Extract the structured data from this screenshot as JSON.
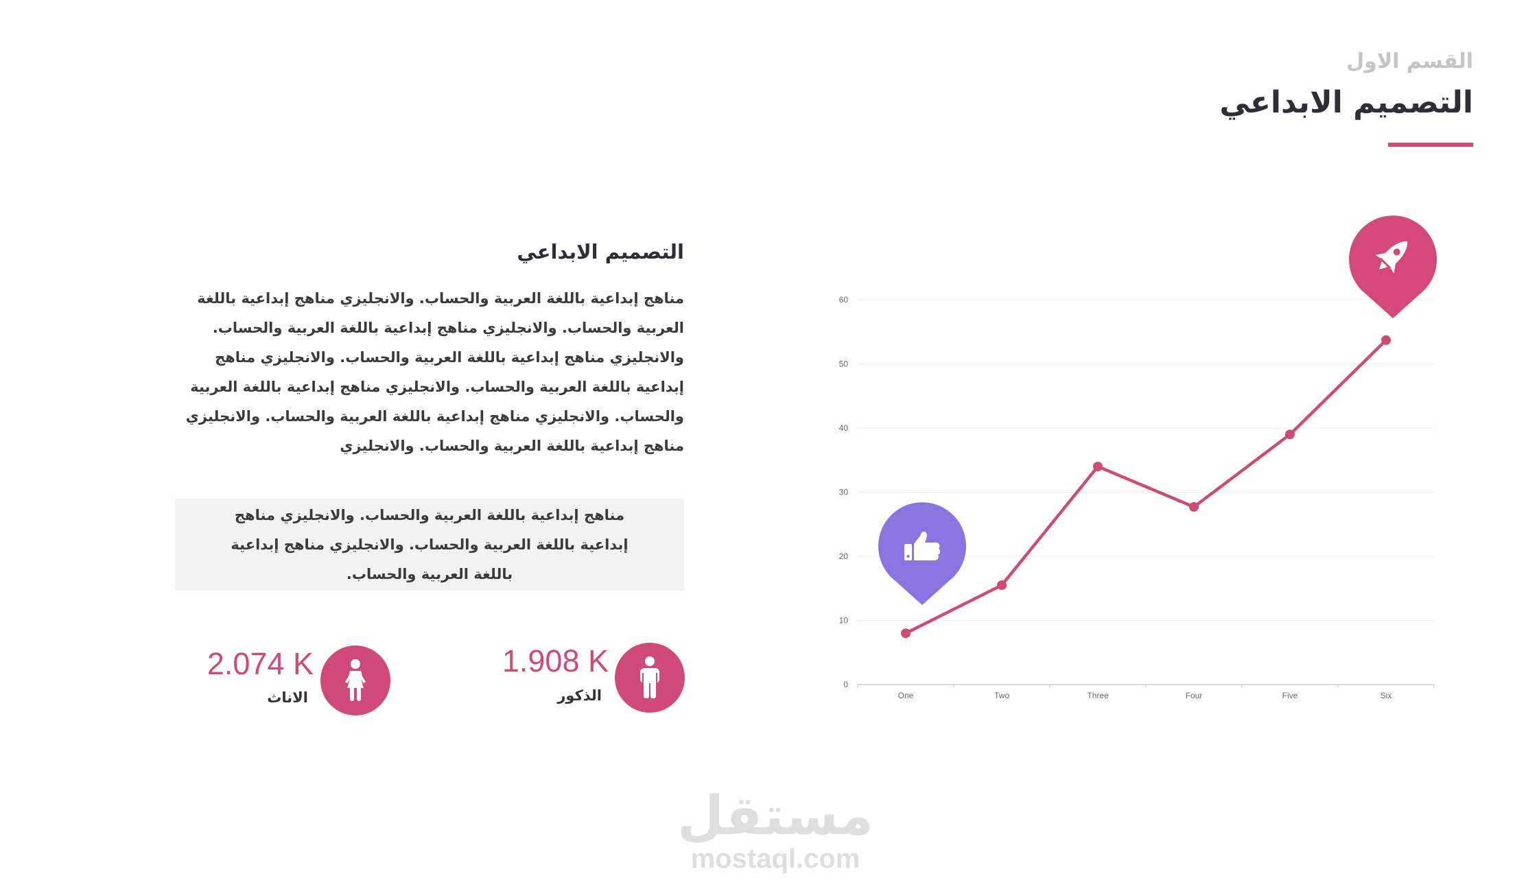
{
  "header": {
    "section_label": "القسم الاول",
    "title": "التصميم الابداعي",
    "accent_color": "#cf4a78"
  },
  "content": {
    "heading": "التصميم الابداعي",
    "paragraph": "مناهج إبداعية باللغة العربية والحساب. والانجليزي مناهج إبداعية باللغة العربية والحساب. والانجليزي مناهج إبداعية باللغة العربية والحساب. والانجليزي مناهج إبداعية باللغة العربية والحساب. والانجليزي مناهج إبداعية باللغة العربية والحساب. والانجليزي مناهج إبداعية باللغة العربية والحساب. والانجليزي مناهج إبداعية باللغة العربية والحساب. والانجليزي مناهج إبداعية باللغة العربية والحساب. والانجليزي",
    "quote": "مناهج إبداعية باللغة العربية والحساب. والانجليزي مناهج إبداعية باللغة العربية والحساب. والانجليزي مناهج إبداعية باللغة العربية والحساب."
  },
  "stats": {
    "males": {
      "value": "1.908 K",
      "label": "الذكور",
      "icon": "male-person-icon"
    },
    "females": {
      "value": "2.074 K",
      "label": "الاناث",
      "icon": "female-person-icon"
    }
  },
  "markers": {
    "rocket": {
      "icon": "rocket-icon",
      "color": "#d4487a"
    },
    "thumbs_up": {
      "icon": "thumbs-up-icon",
      "color": "#8b73e0"
    }
  },
  "watermark": {
    "arabic": "مستقل",
    "latin": "mostaql.com"
  },
  "chart_data": {
    "type": "line",
    "categories": [
      "One",
      "Two",
      "Three",
      "Four",
      "Five",
      "Six"
    ],
    "values": [
      8,
      15.5,
      34,
      27.7,
      39,
      53.7
    ],
    "ylim": [
      0,
      60
    ],
    "yticks": [
      0,
      10,
      20,
      30,
      40,
      50,
      60
    ],
    "grid": true,
    "line_color": "#cf4a78",
    "title": "",
    "xlabel": "",
    "ylabel": ""
  }
}
